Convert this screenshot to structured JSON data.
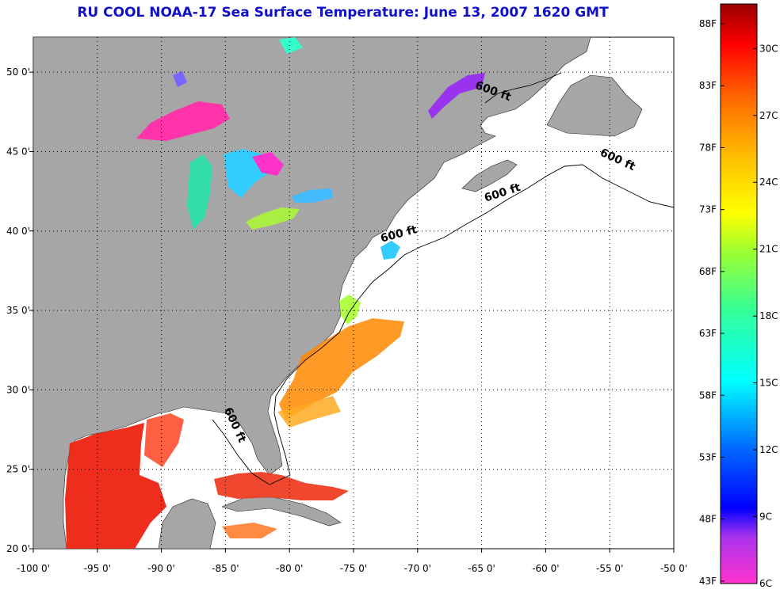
{
  "title": "RU COOL  NOAA-17  Sea Surface Temperature:  June 13, 2007 1620 GMT",
  "map": {
    "lon_range": [
      -100,
      -50
    ],
    "lat_range": [
      20,
      52.2
    ],
    "grid": true,
    "land_color": "#a6a6a6",
    "ocean_nodata_color": "#ffffff",
    "x_ticks": [
      {
        "lon": -100,
        "label": "-100 0'"
      },
      {
        "lon": -95,
        "label": "-95 0'"
      },
      {
        "lon": -90,
        "label": "-90 0'"
      },
      {
        "lon": -85,
        "label": "-85 0'"
      },
      {
        "lon": -80,
        "label": "-80 0'"
      },
      {
        "lon": -75,
        "label": "-75 0'"
      },
      {
        "lon": -70,
        "label": "-70 0'"
      },
      {
        "lon": -65,
        "label": "-65 0'"
      },
      {
        "lon": -60,
        "label": "-60 0'"
      },
      {
        "lon": -55,
        "label": "-55 0'"
      },
      {
        "lon": -50,
        "label": "-50 0'"
      }
    ],
    "y_ticks": [
      {
        "lat": 20,
        "label": "20 0'"
      },
      {
        "lat": 25,
        "label": "25 0'"
      },
      {
        "lat": 30,
        "label": "30 0'"
      },
      {
        "lat": 35,
        "label": "35 0'"
      },
      {
        "lat": 40,
        "label": "40 0'"
      },
      {
        "lat": 45,
        "label": "45 0'"
      },
      {
        "lat": 50,
        "label": "50 0'"
      }
    ],
    "contour_labels": [
      {
        "text": "600 ft",
        "lon": -64.2,
        "lat": 48.6,
        "rotate": 20
      },
      {
        "text": "600 ft",
        "lon": -54.5,
        "lat": 44.3,
        "rotate": 25
      },
      {
        "text": "600 ft",
        "lon": -63.3,
        "lat": 42.2,
        "rotate": -18
      },
      {
        "text": "600 ft",
        "lon": -71.4,
        "lat": 39.6,
        "rotate": -15
      },
      {
        "text": "600 ft",
        "lon": -84.5,
        "lat": 27.7,
        "rotate": 65
      }
    ]
  },
  "colorbar": {
    "fahrenheit": [
      {
        "value": 88,
        "label": "88F"
      },
      {
        "value": 83,
        "label": "83F"
      },
      {
        "value": 78,
        "label": "78F"
      },
      {
        "value": 73,
        "label": "73F"
      },
      {
        "value": 68,
        "label": "68F"
      },
      {
        "value": 63,
        "label": "63F"
      },
      {
        "value": 58,
        "label": "58F"
      },
      {
        "value": 53,
        "label": "53F"
      },
      {
        "value": 48,
        "label": "48F"
      },
      {
        "value": 43,
        "label": "43F"
      }
    ],
    "celsius": [
      {
        "value": 30,
        "label": "30C"
      },
      {
        "value": 27,
        "label": "27C"
      },
      {
        "value": 24,
        "label": "24C"
      },
      {
        "value": 21,
        "label": "21C"
      },
      {
        "value": 18,
        "label": "18C"
      },
      {
        "value": 15,
        "label": "15C"
      },
      {
        "value": 12,
        "label": "12C"
      },
      {
        "value": 9,
        "label": "9C"
      },
      {
        "value": 6,
        "label": "6C"
      }
    ],
    "range_c": [
      6,
      32
    ]
  }
}
